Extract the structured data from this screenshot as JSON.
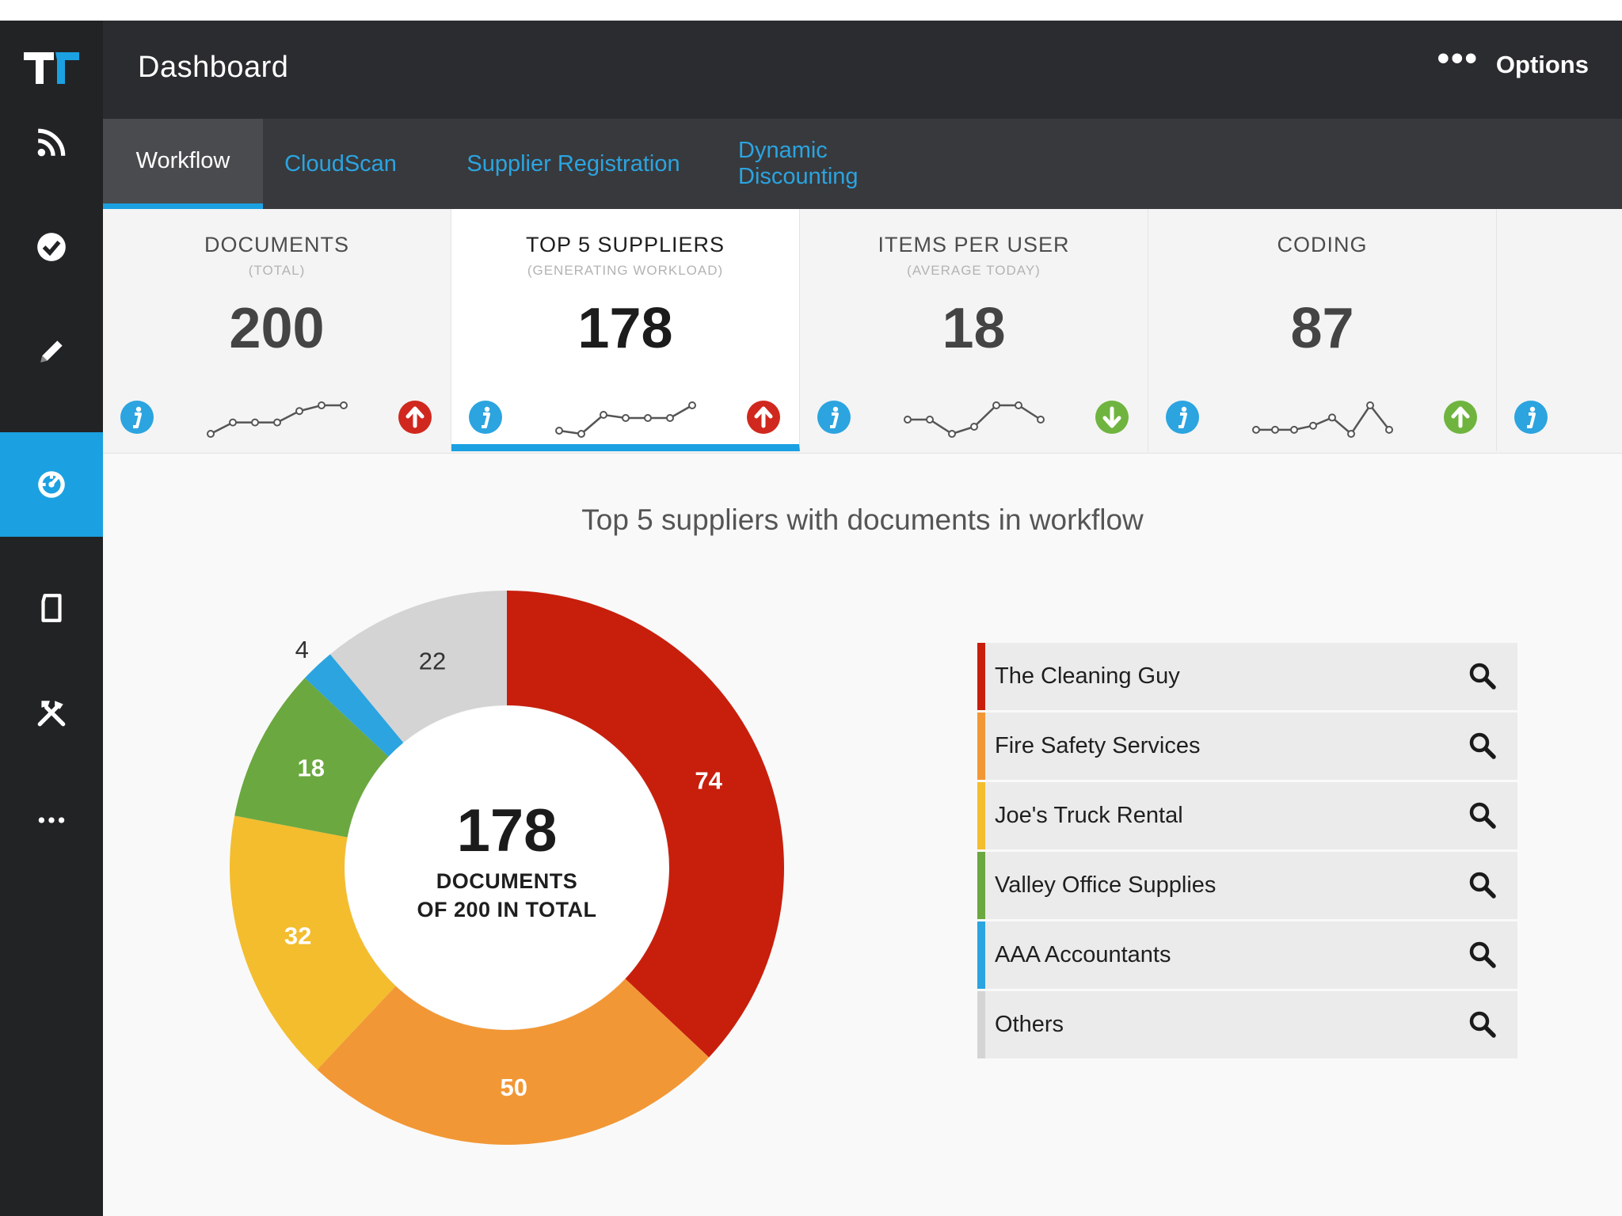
{
  "app": {
    "logo_icon": "tradeshift-logo",
    "accent": "#1ba1e2"
  },
  "header": {
    "title": "Dashboard",
    "options_label": "Options",
    "options_icon": "more-horizontal-icon"
  },
  "sidebar": {
    "items": [
      {
        "icon": "feed-icon",
        "active": false
      },
      {
        "icon": "check-circle-icon",
        "active": false
      },
      {
        "icon": "pencil-icon",
        "active": false
      },
      {
        "icon": "dashboard-icon",
        "active": true
      },
      {
        "icon": "document-icon",
        "active": false
      },
      {
        "icon": "tools-icon",
        "active": false
      },
      {
        "icon": "more-icon",
        "active": false
      }
    ]
  },
  "tabs": [
    {
      "label": "Workflow",
      "active": true
    },
    {
      "label": "CloudScan",
      "active": false
    },
    {
      "label": "Supplier Registration",
      "active": false
    },
    {
      "label": "Dynamic Discounting",
      "active": false
    }
  ],
  "kpis": [
    {
      "title": "DOCUMENTS",
      "subtitle": "(TOTAL)",
      "value": "200",
      "trend": "up",
      "trend_color": "#d0281e",
      "sparkline": [
        2,
        4,
        4,
        4,
        6,
        7,
        7
      ]
    },
    {
      "title": "TOP 5 SUPPLIERS",
      "subtitle": "(GENERATING WORKLOAD)",
      "value": "178",
      "trend": "up",
      "trend_color": "#d0281e",
      "active": true,
      "sparkline": [
        1,
        0,
        6,
        5,
        5,
        5,
        9
      ]
    },
    {
      "title": "ITEMS PER USER",
      "subtitle": "(AVERAGE TODAY)",
      "value": "18",
      "trend": "down",
      "trend_color": "#6fb43f",
      "sparkline": [
        6,
        6,
        4,
        5,
        8,
        8,
        6
      ]
    },
    {
      "title": "CODING",
      "subtitle": "",
      "value": "87",
      "trend": "up",
      "trend_color": "#6fb43f",
      "sparkline": [
        2,
        2,
        2,
        3,
        5,
        1,
        8,
        2
      ]
    }
  ],
  "chart_title": "Top 5 suppliers with documents in workflow",
  "chart_center": {
    "value": "178",
    "line1": "DOCUMENTS",
    "line2": "OF 200 IN TOTAL"
  },
  "chart_data": {
    "type": "pie",
    "categories": [
      "The Cleaning Guy",
      "Fire Safety Services",
      "Joe's Truck Rental",
      "Valley Office Supplies",
      "AAA Accountants",
      "Others"
    ],
    "values": [
      74,
      50,
      32,
      18,
      4,
      22
    ],
    "colors": [
      "#c81f0d",
      "#f29735",
      "#f3bd2e",
      "#6ba840",
      "#2ba4e0",
      "#d4d4d4"
    ],
    "label_colors": [
      "#ffffff",
      "#ffffff",
      "#ffffff",
      "#ffffff",
      "#333333",
      "#333333"
    ],
    "donut": true,
    "legend_position": "right"
  },
  "legend": [
    {
      "name": "The Cleaning Guy",
      "color": "#c81f0d"
    },
    {
      "name": "Fire Safety Services",
      "color": "#f29735"
    },
    {
      "name": "Joe's Truck Rental",
      "color": "#f3bd2e"
    },
    {
      "name": "Valley Office Supplies",
      "color": "#6ba840"
    },
    {
      "name": "AAA Accountants",
      "color": "#2ba4e0"
    },
    {
      "name": "Others",
      "color": "#d4d4d4"
    }
  ]
}
